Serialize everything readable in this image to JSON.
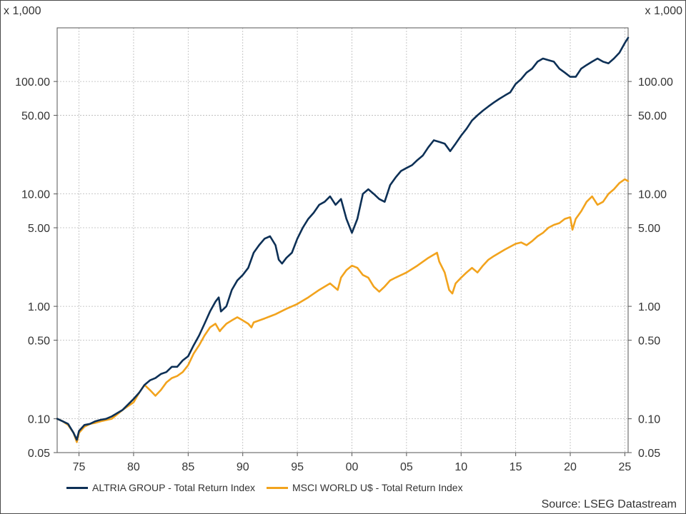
{
  "chart_data": {
    "type": "line",
    "unit_label": "x 1,000",
    "y_scale": "log",
    "ylim": [
      0.05,
      300
    ],
    "yticks": [
      0.05,
      0.1,
      0.5,
      1.0,
      5.0,
      10.0,
      50.0,
      100.0
    ],
    "ytick_labels": [
      "0.05",
      "0.10",
      "0.50",
      "1.00",
      "5.00",
      "10.00",
      "50.00",
      "100.00"
    ],
    "xlim": [
      1973,
      2025.3
    ],
    "xticks": [
      1975,
      1980,
      1985,
      1990,
      1995,
      2000,
      2005,
      2010,
      2015,
      2020,
      2025
    ],
    "xtick_labels": [
      "75",
      "80",
      "85",
      "90",
      "95",
      "00",
      "05",
      "10",
      "15",
      "20",
      "25"
    ],
    "grid": true,
    "legend_position": "bottom-left",
    "source": "Source: LSEG Datastream",
    "series": [
      {
        "name": "ALTRIA GROUP - Total Return Index",
        "color": "#0d3056",
        "x": [
          1973,
          1973.5,
          1974,
          1974.5,
          1974.8,
          1975,
          1975.5,
          1976,
          1976.5,
          1977,
          1977.5,
          1978,
          1979,
          1980,
          1980.5,
          1981,
          1981.5,
          1982,
          1982.5,
          1983,
          1983.5,
          1984,
          1984.5,
          1985,
          1985.5,
          1986,
          1986.5,
          1987,
          1987.5,
          1987.8,
          1988,
          1988.5,
          1989,
          1989.5,
          1990,
          1990.5,
          1991,
          1991.5,
          1992,
          1992.5,
          1993,
          1993.3,
          1993.6,
          1994,
          1994.5,
          1995,
          1995.5,
          1996,
          1996.5,
          1997,
          1997.5,
          1998,
          1998.5,
          1999,
          1999.5,
          2000,
          2000.5,
          2001,
          2001.5,
          2002,
          2002.5,
          2003,
          2003.5,
          2004,
          2004.5,
          2005,
          2005.5,
          2006,
          2006.5,
          2007,
          2007.5,
          2008,
          2008.5,
          2009,
          2009.5,
          2010,
          2010.5,
          2011,
          2011.5,
          2012,
          2012.5,
          2013,
          2013.5,
          2014,
          2014.5,
          2015,
          2015.5,
          2016,
          2016.5,
          2017,
          2017.5,
          2018,
          2018.5,
          2019,
          2019.5,
          2020,
          2020.5,
          2021,
          2021.5,
          2022,
          2022.5,
          2023,
          2023.5,
          2024,
          2024.5,
          2025,
          2025.3
        ],
        "values": [
          0.1,
          0.095,
          0.09,
          0.075,
          0.065,
          0.078,
          0.088,
          0.09,
          0.095,
          0.098,
          0.1,
          0.105,
          0.12,
          0.15,
          0.17,
          0.2,
          0.22,
          0.23,
          0.25,
          0.26,
          0.29,
          0.29,
          0.33,
          0.36,
          0.45,
          0.55,
          0.7,
          0.9,
          1.1,
          1.2,
          0.9,
          1.0,
          1.4,
          1.7,
          1.9,
          2.2,
          3.0,
          3.5,
          4.0,
          4.2,
          3.5,
          2.6,
          2.4,
          2.7,
          3.0,
          4.0,
          5.0,
          6.0,
          6.8,
          8.0,
          8.5,
          9.5,
          8.0,
          9.0,
          6.0,
          4.5,
          6.0,
          10.0,
          11.0,
          10.0,
          9.0,
          8.5,
          12.0,
          14.0,
          16.0,
          17.0,
          18.0,
          20.0,
          22.0,
          26.0,
          30.0,
          29.0,
          28.0,
          24.0,
          28.0,
          33.0,
          38.0,
          45.0,
          50.0,
          55.0,
          60.0,
          65.0,
          70.0,
          75.0,
          80.0,
          95.0,
          105.0,
          120.0,
          130.0,
          150.0,
          160.0,
          155.0,
          150.0,
          130.0,
          120.0,
          110.0,
          110.0,
          130.0,
          140.0,
          150.0,
          160.0,
          150.0,
          145.0,
          160.0,
          180.0,
          220.0,
          245.0
        ]
      },
      {
        "name": "MSCI WORLD U$ - Total Return Index",
        "color": "#f2a31d",
        "x": [
          1973,
          1973.5,
          1974,
          1974.5,
          1974.8,
          1975,
          1975.5,
          1976,
          1976.5,
          1977,
          1978,
          1979,
          1980,
          1980.5,
          1981,
          1981.5,
          1982,
          1982.5,
          1983,
          1983.5,
          1984,
          1984.5,
          1985,
          1985.5,
          1986,
          1986.5,
          1987,
          1987.5,
          1987.9,
          1988,
          1988.5,
          1989,
          1989.5,
          1990,
          1990.5,
          1990.8,
          1991,
          1992,
          1993,
          1994,
          1995,
          1996,
          1997,
          1998,
          1998.7,
          1999,
          1999.5,
          2000,
          2000.5,
          2001,
          2001.5,
          2002,
          2002.5,
          2003,
          2003.5,
          2004,
          2005,
          2006,
          2007,
          2007.8,
          2008,
          2008.5,
          2008.9,
          2009.2,
          2009.5,
          2010,
          2010.5,
          2011,
          2011.5,
          2012,
          2012.5,
          2013,
          2014,
          2015,
          2015.5,
          2016,
          2016.5,
          2017,
          2017.5,
          2018,
          2018.5,
          2019,
          2019.5,
          2020,
          2020.2,
          2020.5,
          2021,
          2021.5,
          2022,
          2022.5,
          2023,
          2023.5,
          2024,
          2024.5,
          2025,
          2025.3
        ],
        "values": [
          0.1,
          0.095,
          0.088,
          0.075,
          0.062,
          0.075,
          0.085,
          0.09,
          0.092,
          0.095,
          0.1,
          0.12,
          0.14,
          0.17,
          0.2,
          0.18,
          0.16,
          0.18,
          0.21,
          0.23,
          0.24,
          0.26,
          0.3,
          0.38,
          0.45,
          0.55,
          0.65,
          0.7,
          0.6,
          0.62,
          0.7,
          0.75,
          0.8,
          0.75,
          0.7,
          0.65,
          0.72,
          0.78,
          0.85,
          0.95,
          1.05,
          1.2,
          1.4,
          1.6,
          1.4,
          1.8,
          2.1,
          2.3,
          2.2,
          1.9,
          1.8,
          1.5,
          1.35,
          1.5,
          1.7,
          1.8,
          2.0,
          2.3,
          2.7,
          3.0,
          2.5,
          2.0,
          1.4,
          1.3,
          1.6,
          1.8,
          2.0,
          2.2,
          2.0,
          2.3,
          2.6,
          2.8,
          3.2,
          3.6,
          3.7,
          3.5,
          3.8,
          4.2,
          4.5,
          5.0,
          5.3,
          5.5,
          6.0,
          6.2,
          4.8,
          6.0,
          7.0,
          8.5,
          9.5,
          8.0,
          8.5,
          10.0,
          11.0,
          12.5,
          13.5,
          13.0
        ]
      }
    ]
  }
}
